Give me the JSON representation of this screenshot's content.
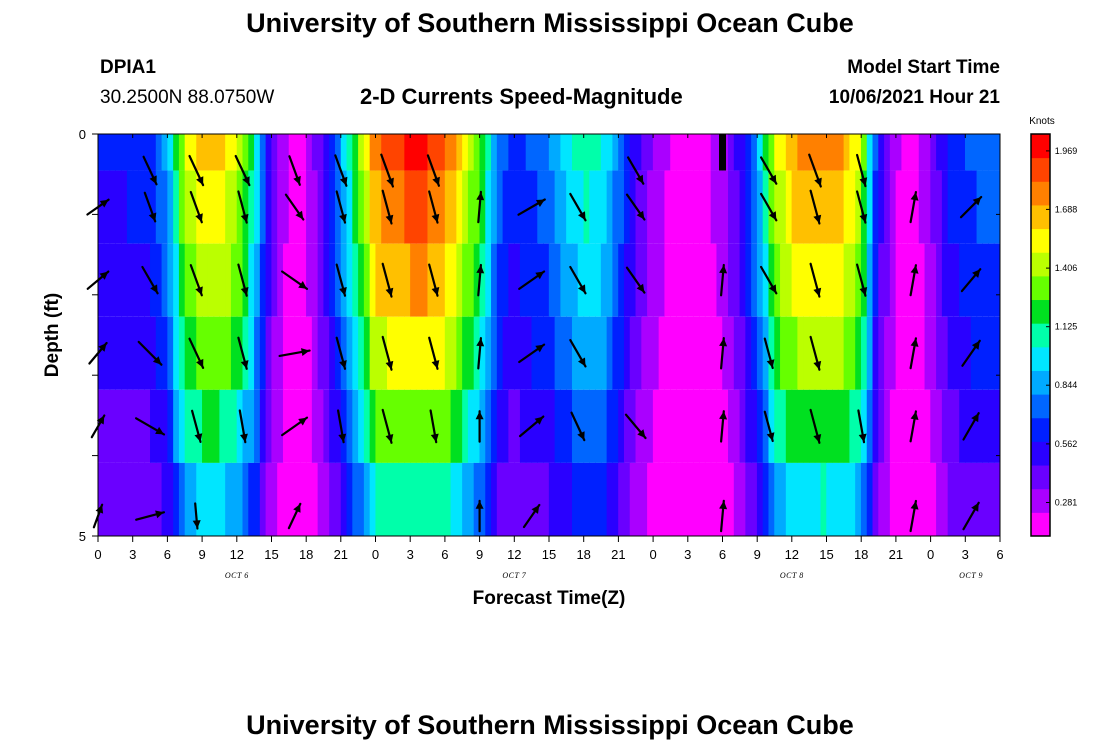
{
  "header": {
    "title": "University of Southern Mississippi Ocean Cube",
    "station": "DPIA1",
    "location": "30.2500N  88.0750W",
    "plot_title": "2-D Currents Speed-Magnitude",
    "model_label": "Model Start Time",
    "model_time": "10/06/2021 Hour 21"
  },
  "footer": {
    "title": "University of Southern Mississippi Ocean Cube"
  },
  "colors": {
    "palette": [
      "#ff00ff",
      "#aa00ff",
      "#6a00ff",
      "#2a00ff",
      "#0020ff",
      "#0066ff",
      "#00aaff",
      "#00e6ff",
      "#00ffaa",
      "#00e020",
      "#66ff00",
      "#bbff00",
      "#ffff00",
      "#ffc000",
      "#ff8000",
      "#ff4400",
      "#ff0000"
    ],
    "arrow": "#000000",
    "missing": "#000000"
  },
  "chart_data": {
    "type": "heatmap",
    "title": "2-D Currents Speed-Magnitude",
    "xlabel": "Forecast Time(Z)",
    "ylabel": "Depth (ft)",
    "units": "Knots",
    "value_range": [
      0.12,
      2.05
    ],
    "colorbar_ticks": [
      "1.969",
      "1.688",
      "1.406",
      "1.125",
      "0.844",
      "0.562",
      "0.281"
    ],
    "colorbar_tick_values": [
      1.969,
      1.688,
      1.406,
      1.125,
      0.844,
      0.562,
      0.281
    ],
    "x_hours_from_oct6_00z": [
      0,
      78
    ],
    "x_ticks": [
      0,
      3,
      6,
      9,
      12,
      15,
      18,
      21,
      24,
      27,
      30,
      33,
      36,
      39,
      42,
      45,
      48,
      51,
      54,
      57,
      60,
      63,
      66,
      69,
      72,
      75,
      78
    ],
    "x_tick_labels": [
      "0",
      "3",
      "6",
      "9",
      "12",
      "15",
      "18",
      "21",
      "0",
      "3",
      "6",
      "9",
      "12",
      "15",
      "18",
      "21",
      "0",
      "3",
      "6",
      "9",
      "12",
      "15",
      "18",
      "21",
      "0",
      "3",
      "6"
    ],
    "date_labels": [
      {
        "text": "OCT 6",
        "hour": 12
      },
      {
        "text": "OCT 7",
        "hour": 36
      },
      {
        "text": "OCT 8",
        "hour": 60
      },
      {
        "text": "OCT 9",
        "hour": 75.5
      }
    ],
    "y_range_ft": [
      0,
      5
    ],
    "y_tick_labels": [
      "0",
      "5"
    ],
    "y_ticks_ft": [
      0,
      1,
      2,
      3,
      4,
      5
    ],
    "depth_levels_ft": [
      0,
      1,
      2,
      3,
      4,
      5
    ],
    "speed_profile_hours": [
      0,
      1.5,
      3,
      4.5,
      6,
      7.5,
      9,
      10.5,
      12,
      13.5,
      15,
      16.5,
      18,
      19.5,
      21,
      22.5,
      24,
      25.5,
      27,
      28.5,
      30,
      31.5,
      33,
      34.5,
      36,
      37.5,
      39,
      40.5,
      42,
      43.5,
      45,
      46.5,
      48,
      49.5,
      51,
      52.5,
      54,
      55.5,
      57,
      58.5,
      60,
      61.5,
      63,
      64.5,
      66,
      67.5,
      69,
      70.5,
      72,
      73.5,
      75,
      76.5,
      78
    ],
    "speed_profile_knots": [
      0.6,
      0.6,
      0.62,
      0.65,
      0.85,
      1.45,
      1.65,
      1.65,
      1.5,
      1.1,
      0.45,
      0.22,
      0.22,
      0.5,
      0.85,
      1.3,
      1.8,
      1.9,
      1.95,
      1.95,
      1.85,
      1.6,
      1.3,
      0.8,
      0.62,
      0.72,
      0.78,
      0.95,
      1.12,
      1.05,
      0.78,
      0.5,
      0.32,
      0.22,
      0.18,
      0.22,
      0.3,
      0.5,
      0.85,
      1.45,
      1.7,
      1.75,
      1.78,
      1.7,
      1.45,
      0.55,
      0.25,
      0.18,
      0.35,
      0.6,
      0.7,
      0.75,
      0.78
    ],
    "depth_factors": [
      1.0,
      0.94,
      0.88,
      0.8,
      0.7,
      0.58
    ],
    "missing_data": [
      {
        "hour": 54,
        "depth_ft": 0
      }
    ],
    "current_vectors": [
      {
        "hour": 0,
        "dirs_deg": [
          null,
          55,
          50,
          40,
          30,
          20
        ],
        "speeds": [
          0.55,
          0.55,
          0.6,
          0.6,
          0.5,
          0.45
        ]
      },
      {
        "hour": 4.5,
        "dirs_deg": [
          155,
          160,
          150,
          135,
          120,
          75
        ],
        "speeds": [
          0.8,
          0.8,
          0.8,
          0.9,
          0.9,
          0.7
        ]
      },
      {
        "hour": 8.5,
        "dirs_deg": [
          155,
          160,
          160,
          155,
          165,
          175
        ],
        "speeds": [
          0.9,
          0.9,
          0.9,
          0.9,
          0.9,
          0.5
        ]
      },
      {
        "hour": 12.5,
        "dirs_deg": [
          155,
          165,
          165,
          165,
          170,
          null
        ],
        "speeds": [
          0.9,
          0.9,
          0.9,
          0.9,
          0.9,
          null
        ]
      },
      {
        "hour": 17,
        "dirs_deg": [
          160,
          145,
          125,
          80,
          55,
          25
        ],
        "speeds": [
          0.8,
          0.8,
          0.8,
          0.8,
          0.8,
          0.6
        ]
      },
      {
        "hour": 21,
        "dirs_deg": [
          160,
          165,
          165,
          165,
          170,
          null
        ],
        "speeds": [
          0.9,
          0.9,
          0.9,
          0.9,
          0.9,
          null
        ]
      },
      {
        "hour": 25,
        "dirs_deg": [
          160,
          165,
          165,
          165,
          165,
          null
        ],
        "speeds": [
          1.0,
          1.0,
          1.0,
          1.0,
          1.0,
          null
        ]
      },
      {
        "hour": 29,
        "dirs_deg": [
          160,
          165,
          165,
          165,
          170,
          null
        ],
        "speeds": [
          0.9,
          0.9,
          0.9,
          0.9,
          0.9,
          null
        ]
      },
      {
        "hour": 33,
        "dirs_deg": [
          null,
          5,
          5,
          5,
          0,
          0
        ],
        "speeds": [
          null,
          0.8,
          0.8,
          0.8,
          0.8,
          0.8
        ]
      },
      {
        "hour": 37.5,
        "dirs_deg": [
          null,
          60,
          55,
          55,
          50,
          35
        ],
        "speeds": [
          null,
          0.8,
          0.8,
          0.8,
          0.8,
          0.6
        ]
      },
      {
        "hour": 41.5,
        "dirs_deg": [
          null,
          150,
          150,
          150,
          155,
          null
        ],
        "speeds": [
          null,
          0.8,
          0.8,
          0.8,
          0.8,
          null
        ]
      },
      {
        "hour": 46.5,
        "dirs_deg": [
          150,
          145,
          145,
          null,
          140,
          null
        ],
        "speeds": [
          0.8,
          0.8,
          0.8,
          null,
          0.8,
          null
        ]
      },
      {
        "hour": 51.5,
        "dirs_deg": [
          null,
          null,
          null,
          null,
          null,
          null
        ],
        "speeds": [
          null,
          null,
          null,
          null,
          null,
          null
        ]
      },
      {
        "hour": 54,
        "dirs_deg": [
          null,
          null,
          5,
          5,
          5,
          5
        ],
        "speeds": [
          null,
          null,
          0.8,
          0.8,
          0.8,
          0.8
        ]
      },
      {
        "hour": 58,
        "dirs_deg": [
          150,
          150,
          150,
          165,
          165,
          null
        ],
        "speeds": [
          0.8,
          0.8,
          0.8,
          0.8,
          0.8,
          null
        ]
      },
      {
        "hour": 62,
        "dirs_deg": [
          160,
          165,
          165,
          165,
          165,
          null
        ],
        "speeds": [
          1.0,
          1.0,
          1.0,
          1.0,
          1.0,
          null
        ]
      },
      {
        "hour": 66,
        "dirs_deg": [
          165,
          165,
          165,
          null,
          170,
          null
        ],
        "speeds": [
          0.9,
          0.9,
          0.9,
          null,
          0.9,
          null
        ]
      },
      {
        "hour": 70.5,
        "dirs_deg": [
          null,
          10,
          10,
          10,
          10,
          10
        ],
        "speeds": [
          null,
          0.8,
          0.8,
          0.8,
          0.8,
          0.8
        ]
      },
      {
        "hour": 75.5,
        "dirs_deg": [
          null,
          45,
          40,
          35,
          30,
          30
        ],
        "speeds": [
          null,
          0.7,
          0.7,
          0.8,
          0.8,
          0.8
        ]
      }
    ]
  }
}
